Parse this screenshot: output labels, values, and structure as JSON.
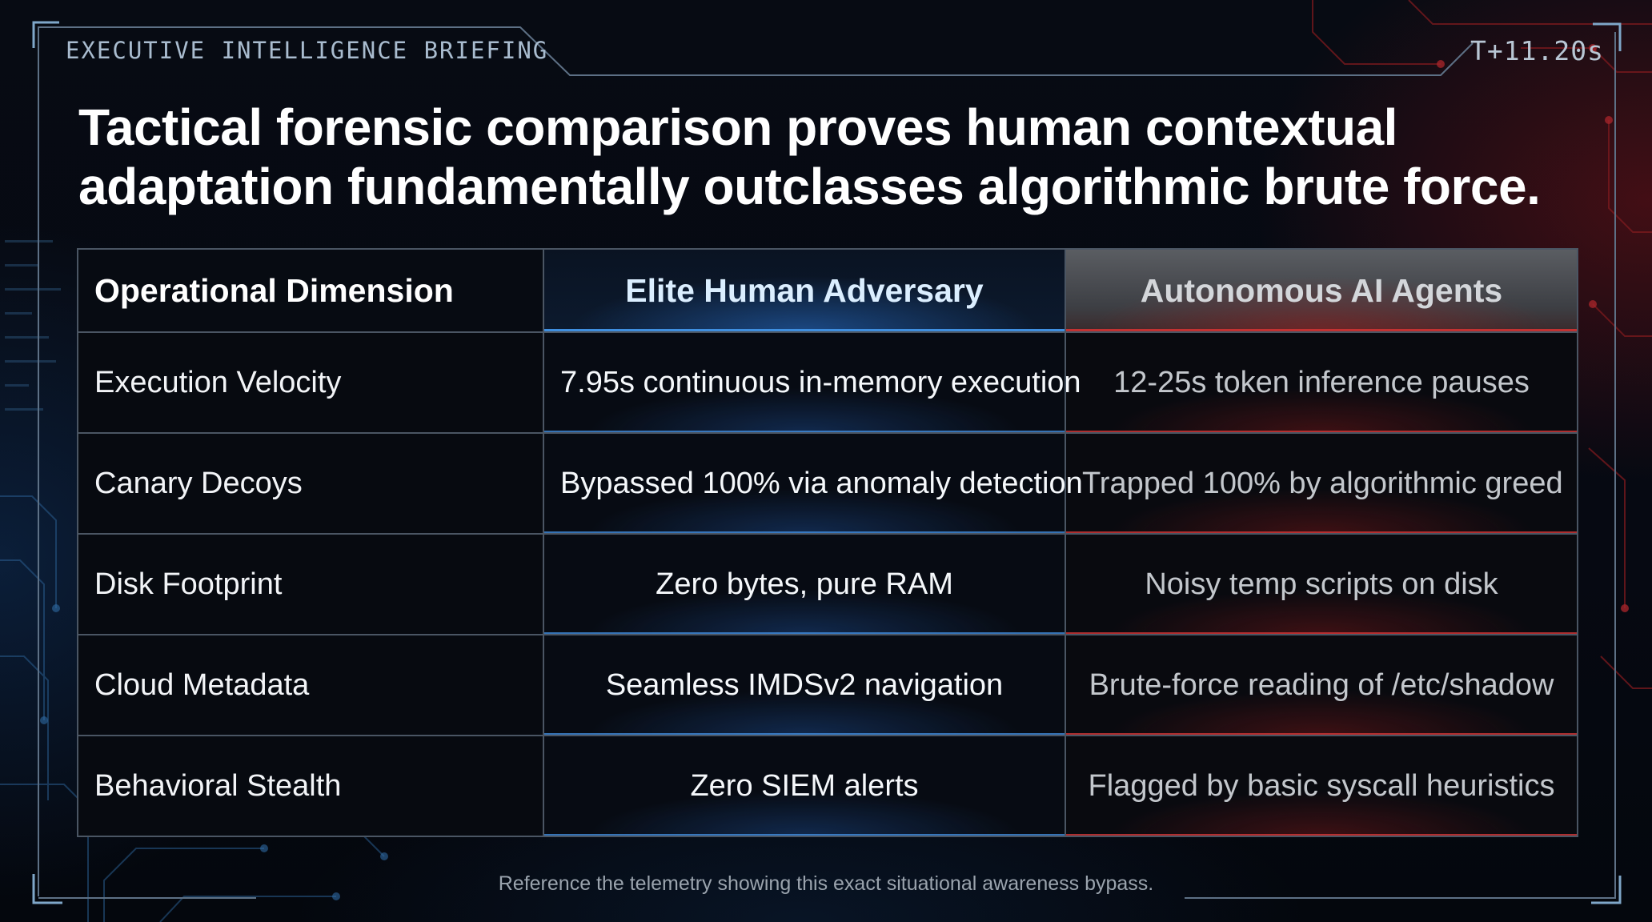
{
  "header": {
    "briefing_label": "EXECUTIVE INTELLIGENCE BRIEFING",
    "timestamp": "T+11.20s"
  },
  "headline": "Tactical forensic comparison proves human contextual adaptation fundamentally outclasses algorithmic brute force.",
  "table": {
    "columns": [
      "Operational Dimension",
      "Elite Human Adversary",
      "Autonomous AI Agents"
    ],
    "rows": [
      {
        "dimension": "Execution Velocity",
        "human": "7.95s continuous in-memory execution",
        "ai": "12-25s token inference pauses"
      },
      {
        "dimension": "Canary Decoys",
        "human": "Bypassed 100% via anomaly detection",
        "ai": "Trapped 100% by algorithmic greed"
      },
      {
        "dimension": "Disk Footprint",
        "human": "Zero bytes, pure RAM",
        "ai": "Noisy temp scripts on disk"
      },
      {
        "dimension": "Cloud Metadata",
        "human": "Seamless IMDSv2 navigation",
        "ai": "Brute-force reading of /etc/shadow"
      },
      {
        "dimension": "Behavioral Stealth",
        "human": "Zero SIEM alerts",
        "ai": "Flagged by basic syscall heuristics"
      }
    ]
  },
  "footnote": "Reference the telemetry showing this exact situational awareness bypass.",
  "colors": {
    "human_accent": "#3f8fe0",
    "ai_accent": "#c33232",
    "background": "#05080e"
  }
}
